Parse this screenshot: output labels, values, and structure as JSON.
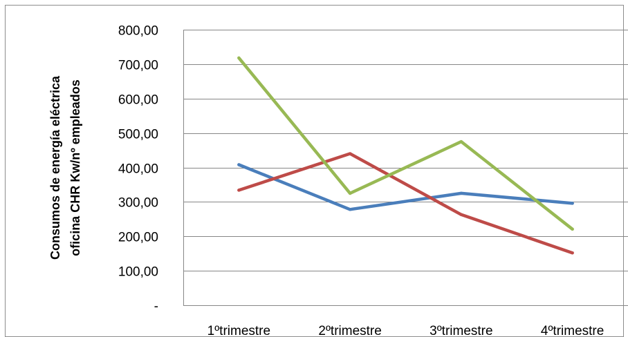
{
  "chart_data": {
    "type": "line",
    "categories": [
      "1ºtrimestre",
      "2ºtrimestre",
      "3ºtrimestre",
      "4ºtrimestre"
    ],
    "ylabel_lines": [
      "Consumos de energía eléctrica",
      "oficina CHR Kw/nº empleados"
    ],
    "ylim": [
      0,
      800
    ],
    "yticks": [
      {
        "value": 0,
        "label": "-"
      },
      {
        "value": 100,
        "label": "100,00"
      },
      {
        "value": 200,
        "label": "200,00"
      },
      {
        "value": 300,
        "label": "300,00"
      },
      {
        "value": 400,
        "label": "400,00"
      },
      {
        "value": 500,
        "label": "500,00"
      },
      {
        "value": 600,
        "label": "600,00"
      },
      {
        "value": 700,
        "label": "700,00"
      },
      {
        "value": 800,
        "label": "800,00"
      }
    ],
    "grid": true,
    "legend": "none",
    "series": [
      {
        "color": "#4a7ebb",
        "values": [
          408,
          278,
          325,
          296
        ]
      },
      {
        "color": "#be4b48",
        "values": [
          334,
          440,
          263,
          152
        ]
      },
      {
        "color": "#98b954",
        "values": [
          718,
          325,
          475,
          221
        ]
      }
    ]
  }
}
